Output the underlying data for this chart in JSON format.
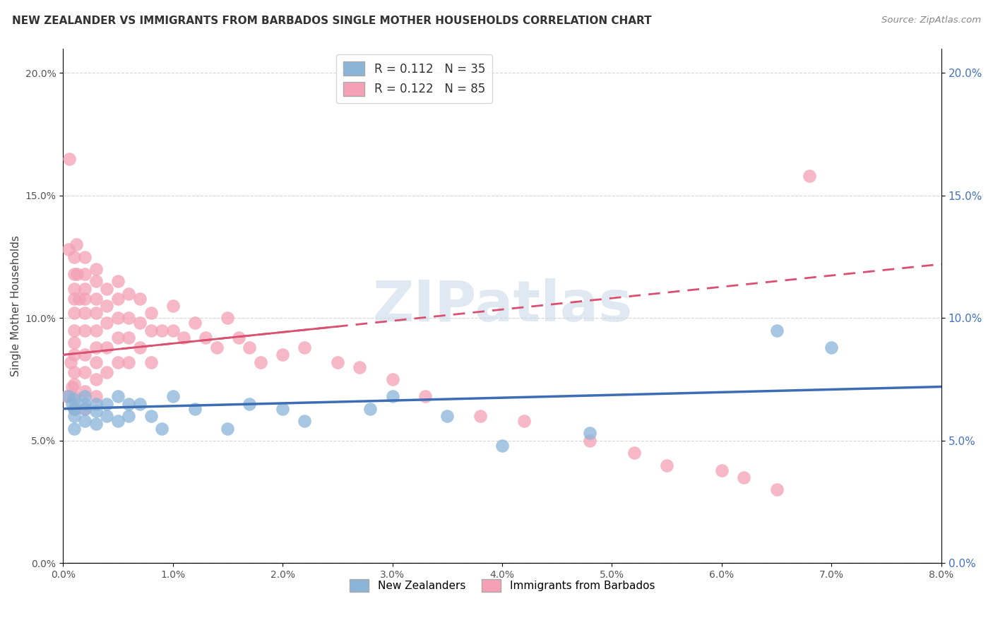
{
  "title": "NEW ZEALANDER VS IMMIGRANTS FROM BARBADOS SINGLE MOTHER HOUSEHOLDS CORRELATION CHART",
  "source": "Source: ZipAtlas.com",
  "ylabel": "Single Mother Households",
  "xlabel": "",
  "legend_bottom": [
    "New Zealanders",
    "Immigrants from Barbados"
  ],
  "r_nz": 0.112,
  "n_nz": 35,
  "r_bb": 0.122,
  "n_bb": 85,
  "xlim": [
    0.0,
    0.08
  ],
  "ylim": [
    0.0,
    0.21
  ],
  "x_ticks": [
    0.0,
    0.01,
    0.02,
    0.03,
    0.04,
    0.05,
    0.06,
    0.07,
    0.08
  ],
  "y_ticks": [
    0.0,
    0.05,
    0.1,
    0.15,
    0.2
  ],
  "color_nz": "#8ab4d8",
  "color_bb": "#f4a0b5",
  "line_color_nz": "#3d6db5",
  "line_color_bb": "#d95070",
  "background_color": "#ffffff",
  "watermark": "ZIPatlas",
  "nz_x": [
    0.0005,
    0.0008,
    0.001,
    0.001,
    0.001,
    0.001,
    0.002,
    0.002,
    0.002,
    0.002,
    0.003,
    0.003,
    0.003,
    0.004,
    0.004,
    0.005,
    0.005,
    0.006,
    0.006,
    0.007,
    0.008,
    0.009,
    0.01,
    0.012,
    0.015,
    0.017,
    0.02,
    0.022,
    0.028,
    0.03,
    0.035,
    0.04,
    0.048,
    0.065,
    0.07
  ],
  "nz_y": [
    0.068,
    0.065,
    0.063,
    0.06,
    0.067,
    0.055,
    0.068,
    0.065,
    0.063,
    0.058,
    0.065,
    0.062,
    0.057,
    0.065,
    0.06,
    0.068,
    0.058,
    0.065,
    0.06,
    0.065,
    0.06,
    0.055,
    0.068,
    0.063,
    0.055,
    0.065,
    0.063,
    0.058,
    0.063,
    0.068,
    0.06,
    0.048,
    0.053,
    0.095,
    0.088
  ],
  "bb_x": [
    0.0003,
    0.0005,
    0.0006,
    0.0007,
    0.0008,
    0.001,
    0.001,
    0.001,
    0.001,
    0.001,
    0.001,
    0.001,
    0.001,
    0.001,
    0.001,
    0.001,
    0.001,
    0.0012,
    0.0013,
    0.0015,
    0.002,
    0.002,
    0.002,
    0.002,
    0.002,
    0.002,
    0.002,
    0.002,
    0.002,
    0.002,
    0.003,
    0.003,
    0.003,
    0.003,
    0.003,
    0.003,
    0.003,
    0.003,
    0.003,
    0.004,
    0.004,
    0.004,
    0.004,
    0.004,
    0.005,
    0.005,
    0.005,
    0.005,
    0.005,
    0.006,
    0.006,
    0.006,
    0.006,
    0.007,
    0.007,
    0.007,
    0.008,
    0.008,
    0.008,
    0.009,
    0.01,
    0.01,
    0.011,
    0.012,
    0.013,
    0.014,
    0.015,
    0.016,
    0.017,
    0.018,
    0.02,
    0.022,
    0.025,
    0.027,
    0.03,
    0.033,
    0.038,
    0.042,
    0.048,
    0.052,
    0.055,
    0.06,
    0.062,
    0.065,
    0.068
  ],
  "bb_y": [
    0.068,
    0.128,
    0.165,
    0.082,
    0.072,
    0.125,
    0.118,
    0.112,
    0.108,
    0.102,
    0.095,
    0.09,
    0.085,
    0.078,
    0.073,
    0.068,
    0.063,
    0.13,
    0.118,
    0.108,
    0.125,
    0.118,
    0.112,
    0.108,
    0.102,
    0.095,
    0.085,
    0.078,
    0.07,
    0.063,
    0.12,
    0.115,
    0.108,
    0.102,
    0.095,
    0.088,
    0.082,
    0.075,
    0.068,
    0.112,
    0.105,
    0.098,
    0.088,
    0.078,
    0.115,
    0.108,
    0.1,
    0.092,
    0.082,
    0.11,
    0.1,
    0.092,
    0.082,
    0.108,
    0.098,
    0.088,
    0.102,
    0.095,
    0.082,
    0.095,
    0.105,
    0.095,
    0.092,
    0.098,
    0.092,
    0.088,
    0.1,
    0.092,
    0.088,
    0.082,
    0.085,
    0.088,
    0.082,
    0.08,
    0.075,
    0.068,
    0.06,
    0.058,
    0.05,
    0.045,
    0.04,
    0.038,
    0.035,
    0.03,
    0.158
  ]
}
